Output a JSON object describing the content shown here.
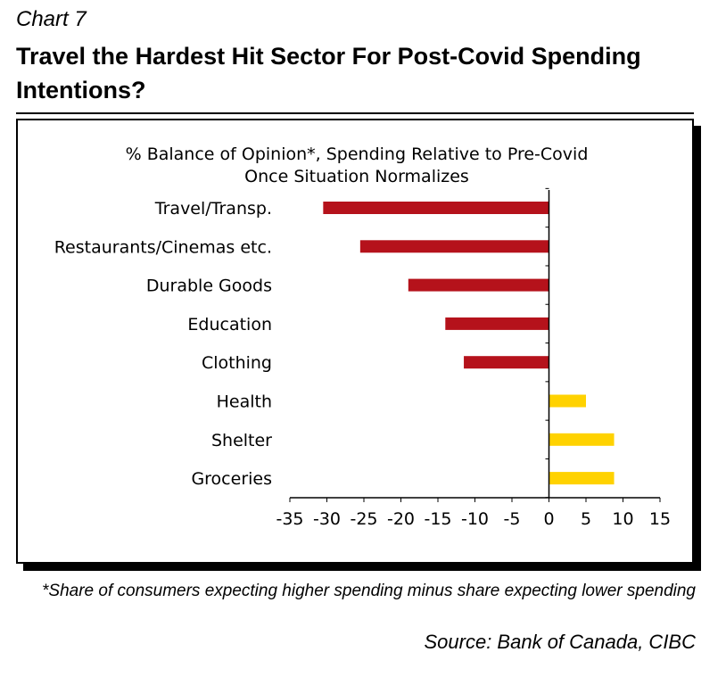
{
  "header": {
    "chart_number": "Chart 7",
    "title": "Travel the Hardest Hit Sector For Post-Covid Spending Intentions?"
  },
  "chart_data": {
    "type": "bar",
    "orientation": "horizontal",
    "subtitle_line1": "% Balance of Opinion*, Spending Relative to Pre-Covid",
    "subtitle_line2": "Once Situation Normalizes",
    "categories": [
      "Travel/Transp.",
      "Restaurants/Cinemas etc.",
      "Durable Goods",
      "Education",
      "Clothing",
      "Health",
      "Shelter",
      "Groceries"
    ],
    "values": [
      -30.5,
      -25.5,
      -19,
      -14,
      -11.5,
      5,
      8.8,
      8.8
    ],
    "xlim": [
      -35,
      15
    ],
    "xticks": [
      "-35",
      "-30",
      "-25",
      "-20",
      "-15",
      "-10",
      "-5",
      "0",
      "5",
      "10",
      "15"
    ],
    "grid": false,
    "legend": "none",
    "colors": {
      "negative": "#B5121B",
      "positive": "#FFD200"
    }
  },
  "footer": {
    "footnote": "*Share of consumers expecting higher spending minus share expecting lower spending",
    "source": "Source: Bank of Canada, CIBC"
  }
}
